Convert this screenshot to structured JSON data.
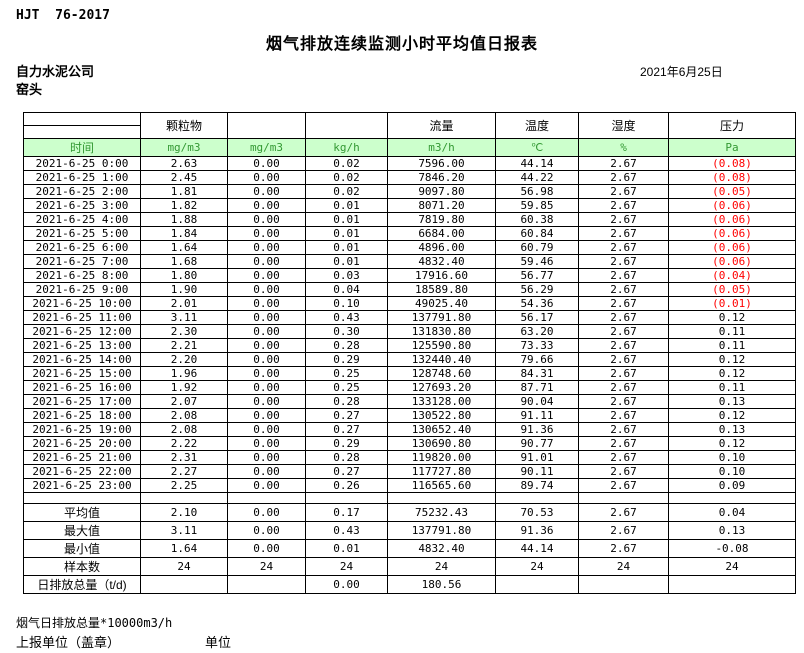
{
  "meta": {
    "doc_code": "HJT  76-2017",
    "title": "烟气排放连续监测小时平均值日报表",
    "company": "自力水泥公司",
    "location": "窑头",
    "date": "2021年6月25日"
  },
  "colors": {
    "green_bg": "#CCFFCC",
    "green_text": "#339933",
    "red": "#FF0000"
  },
  "table": {
    "group_headers": [
      "",
      "颗粒物",
      "",
      "",
      "流量",
      "温度",
      "湿度",
      "压力"
    ],
    "unit_row": [
      "时间",
      "mg/m3",
      "mg/m3",
      "kg/h",
      "m3/h",
      "℃",
      "%",
      "Pa"
    ],
    "rows": [
      [
        "2021-6-25 0:00",
        "2.63",
        "0.00",
        "0.02",
        "7596.00",
        "44.14",
        "2.67",
        "(0.08)"
      ],
      [
        "2021-6-25 1:00",
        "2.45",
        "0.00",
        "0.02",
        "7846.20",
        "44.22",
        "2.67",
        "(0.08)"
      ],
      [
        "2021-6-25 2:00",
        "1.81",
        "0.00",
        "0.02",
        "9097.80",
        "56.98",
        "2.67",
        "(0.05)"
      ],
      [
        "2021-6-25 3:00",
        "1.82",
        "0.00",
        "0.01",
        "8071.20",
        "59.85",
        "2.67",
        "(0.06)"
      ],
      [
        "2021-6-25 4:00",
        "1.88",
        "0.00",
        "0.01",
        "7819.80",
        "60.38",
        "2.67",
        "(0.06)"
      ],
      [
        "2021-6-25 5:00",
        "1.84",
        "0.00",
        "0.01",
        "6684.00",
        "60.84",
        "2.67",
        "(0.06)"
      ],
      [
        "2021-6-25 6:00",
        "1.64",
        "0.00",
        "0.01",
        "4896.00",
        "60.79",
        "2.67",
        "(0.06)"
      ],
      [
        "2021-6-25 7:00",
        "1.68",
        "0.00",
        "0.01",
        "4832.40",
        "59.46",
        "2.67",
        "(0.06)"
      ],
      [
        "2021-6-25 8:00",
        "1.80",
        "0.00",
        "0.03",
        "17916.60",
        "56.77",
        "2.67",
        "(0.04)"
      ],
      [
        "2021-6-25 9:00",
        "1.90",
        "0.00",
        "0.04",
        "18589.80",
        "56.29",
        "2.67",
        "(0.05)"
      ],
      [
        "2021-6-25 10:00",
        "2.01",
        "0.00",
        "0.10",
        "49025.40",
        "54.36",
        "2.67",
        "(0.01)"
      ],
      [
        "2021-6-25 11:00",
        "3.11",
        "0.00",
        "0.43",
        "137791.80",
        "56.17",
        "2.67",
        "0.12"
      ],
      [
        "2021-6-25 12:00",
        "2.30",
        "0.00",
        "0.30",
        "131830.80",
        "63.20",
        "2.67",
        "0.11"
      ],
      [
        "2021-6-25 13:00",
        "2.21",
        "0.00",
        "0.28",
        "125590.80",
        "73.33",
        "2.67",
        "0.11"
      ],
      [
        "2021-6-25 14:00",
        "2.20",
        "0.00",
        "0.29",
        "132440.40",
        "79.66",
        "2.67",
        "0.12"
      ],
      [
        "2021-6-25 15:00",
        "1.96",
        "0.00",
        "0.25",
        "128748.60",
        "84.31",
        "2.67",
        "0.12"
      ],
      [
        "2021-6-25 16:00",
        "1.92",
        "0.00",
        "0.25",
        "127693.20",
        "87.71",
        "2.67",
        "0.11"
      ],
      [
        "2021-6-25 17:00",
        "2.07",
        "0.00",
        "0.28",
        "133128.00",
        "90.04",
        "2.67",
        "0.13"
      ],
      [
        "2021-6-25 18:00",
        "2.08",
        "0.00",
        "0.27",
        "130522.80",
        "91.11",
        "2.67",
        "0.12"
      ],
      [
        "2021-6-25 19:00",
        "2.08",
        "0.00",
        "0.27",
        "130652.40",
        "91.36",
        "2.67",
        "0.13"
      ],
      [
        "2021-6-25 20:00",
        "2.22",
        "0.00",
        "0.29",
        "130690.80",
        "90.77",
        "2.67",
        "0.12"
      ],
      [
        "2021-6-25 21:00",
        "2.31",
        "0.00",
        "0.28",
        "119820.00",
        "91.01",
        "2.67",
        "0.10"
      ],
      [
        "2021-6-25 22:00",
        "2.27",
        "0.00",
        "0.27",
        "117727.80",
        "90.11",
        "2.67",
        "0.10"
      ],
      [
        "2021-6-25 23:00",
        "2.25",
        "0.00",
        "0.26",
        "116565.60",
        "89.74",
        "2.67",
        "0.09"
      ]
    ],
    "summary_rows": [
      [
        "平均值",
        "2.10",
        "0.00",
        "0.17",
        "75232.43",
        "70.53",
        "2.67",
        "0.04"
      ],
      [
        "最大值",
        "3.11",
        "0.00",
        "0.43",
        "137791.80",
        "91.36",
        "2.67",
        "0.13"
      ],
      [
        "最小值",
        "1.64",
        "0.00",
        "0.01",
        "4832.40",
        "44.14",
        "2.67",
        "-0.08"
      ],
      [
        "样本数",
        "24",
        "24",
        "24",
        "24",
        "24",
        "24",
        "24"
      ],
      [
        "日排放总量（t/d)",
        "",
        "",
        "0.00",
        "180.56",
        "",
        "",
        ""
      ]
    ]
  },
  "footer": {
    "note": "烟气日排放总量*10000m3/h",
    "report_unit": "上报单位（盖章）",
    "unit_label": "单位"
  }
}
